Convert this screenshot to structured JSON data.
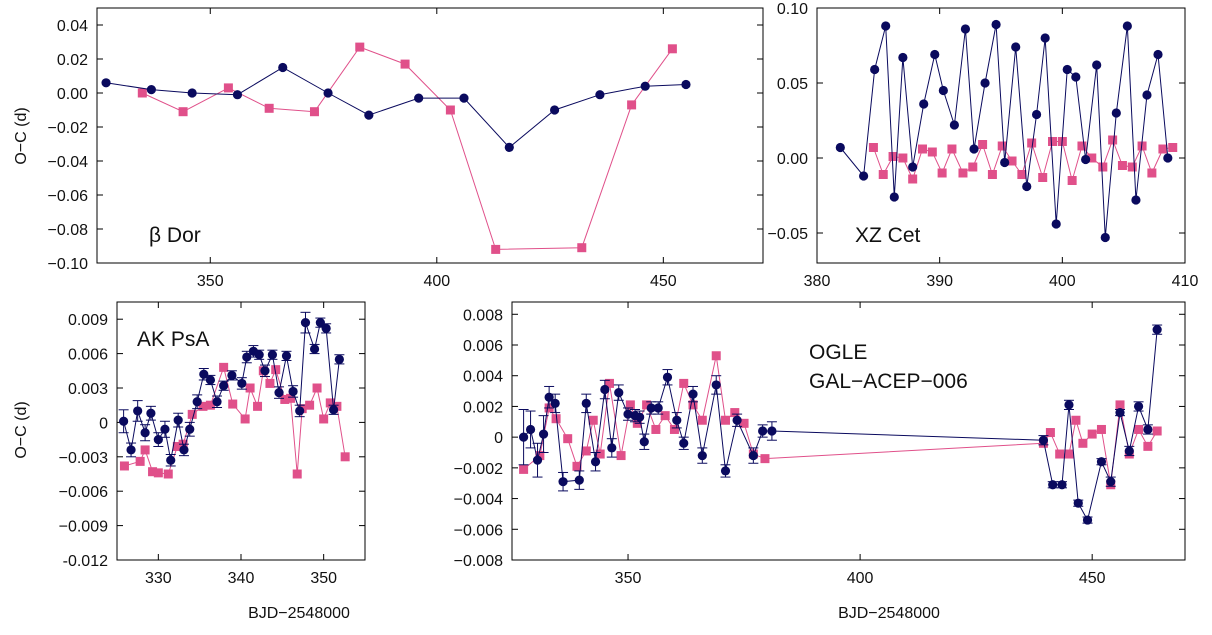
{
  "colors": {
    "series_a": "#0a0a5e",
    "series_b": "#e0508a",
    "frame": "#000000"
  },
  "chart_data": [
    {
      "type": "line",
      "label": "β Dor",
      "ylabel": "O−C (d)",
      "xlabel": "",
      "xlim": [
        325,
        472
      ],
      "ylim": [
        -0.1,
        0.05
      ],
      "xticks": [
        350,
        400,
        450
      ],
      "xtick_labels": [
        "350",
        "400",
        "450"
      ],
      "yticks": [
        -0.1,
        -0.08,
        -0.06,
        -0.04,
        -0.02,
        0.0,
        0.02,
        0.04
      ],
      "ytick_labels": [
        "−0.10",
        "−0.08",
        "−0.06",
        "−0.04",
        "−0.02",
        "0.00",
        "0.02",
        "0.04"
      ],
      "errorbars": false,
      "series": [
        {
          "marker": "circle",
          "x": [
            327,
            337,
            346,
            356,
            366,
            376,
            385,
            396,
            406,
            416,
            426,
            436,
            446,
            455
          ],
          "y": [
            0.006,
            0.002,
            0.0,
            -0.001,
            0.015,
            0.0,
            -0.013,
            -0.003,
            -0.003,
            -0.032,
            -0.01,
            -0.001,
            0.004,
            0.005
          ]
        },
        {
          "marker": "square",
          "x": [
            335,
            344,
            354,
            363,
            373,
            383,
            393,
            403,
            413,
            432,
            443,
            452
          ],
          "y": [
            0.0,
            -0.011,
            0.003,
            -0.009,
            -0.011,
            0.027,
            0.017,
            -0.01,
            -0.092,
            -0.091,
            -0.007,
            0.026
          ]
        }
      ]
    },
    {
      "type": "line",
      "label": "XZ Cet",
      "ylabel": "",
      "xlabel": "",
      "xlim": [
        380,
        410
      ],
      "ylim": [
        -0.07,
        0.1
      ],
      "xticks": [
        380,
        390,
        400,
        410
      ],
      "xtick_labels": [
        "380",
        "390",
        "400",
        "410"
      ],
      "yticks": [
        -0.05,
        0.0,
        0.05,
        0.1
      ],
      "ytick_labels": [
        "−0.05",
        "0.00",
        "0.05",
        "0.10"
      ],
      "errorbars": false,
      "series": [
        {
          "marker": "circle",
          "x": [
            381.9,
            383.8,
            384.7,
            385.6,
            386.3,
            387.0,
            387.8,
            388.7,
            389.6,
            390.3,
            391.2,
            392.1,
            392.8,
            393.7,
            394.6,
            395.3,
            396.2,
            397.1,
            397.9,
            398.6,
            399.5,
            400.4,
            401.1,
            401.9,
            402.8,
            403.5,
            404.4,
            405.3,
            406.0,
            406.9,
            407.8,
            408.6
          ],
          "y": [
            0.007,
            -0.012,
            0.059,
            0.088,
            -0.026,
            0.067,
            -0.006,
            0.036,
            0.069,
            0.045,
            0.022,
            0.086,
            0.006,
            0.05,
            0.089,
            -0.003,
            0.074,
            -0.019,
            0.029,
            0.08,
            -0.044,
            0.059,
            0.054,
            -0.001,
            0.062,
            -0.053,
            0.03,
            0.088,
            -0.028,
            0.042,
            0.069,
            0.0
          ]
        },
        {
          "marker": "square",
          "x": [
            384.6,
            385.4,
            386.2,
            387.0,
            387.8,
            388.6,
            389.4,
            390.2,
            391.0,
            391.9,
            392.7,
            393.5,
            394.3,
            395.1,
            395.9,
            396.7,
            397.5,
            398.4,
            399.2,
            400.0,
            400.8,
            401.6,
            402.4,
            403.3,
            404.1,
            404.9,
            405.7,
            406.5,
            407.3,
            408.2,
            409.0
          ],
          "y": [
            0.007,
            -0.011,
            0.001,
            0.0,
            -0.014,
            0.006,
            0.004,
            -0.01,
            0.006,
            -0.01,
            -0.006,
            0.009,
            -0.011,
            0.008,
            -0.002,
            -0.011,
            0.01,
            -0.013,
            0.011,
            0.011,
            -0.015,
            0.008,
            0.0,
            -0.006,
            0.012,
            -0.005,
            -0.006,
            0.008,
            -0.01,
            0.006,
            0.007
          ]
        }
      ]
    },
    {
      "type": "line",
      "label": "AK PsA",
      "ylabel": "O−C (d)",
      "xlabel": "BJD−2548000",
      "xlim": [
        325,
        355
      ],
      "ylim": [
        -0.012,
        0.0105
      ],
      "xticks": [
        330,
        340,
        350
      ],
      "xtick_labels": [
        "330",
        "340",
        "350"
      ],
      "yticks": [
        -0.012,
        -0.009,
        -0.006,
        -0.003,
        0.0,
        0.003,
        0.006,
        0.009
      ],
      "ytick_labels": [
        "-0.012",
        "−0.009",
        "−0.006",
        "−0.003",
        "0",
        "0.003",
        "0.006",
        "0.009"
      ],
      "errorbars": true,
      "series": [
        {
          "marker": "circle",
          "x": [
            325.8,
            326.7,
            327.5,
            328.4,
            329.1,
            330.0,
            330.8,
            331.5,
            332.4,
            333.1,
            333.8,
            334.7,
            335.5,
            336.3,
            337.1,
            337.9,
            338.9,
            340.1,
            340.7,
            341.5,
            342.2,
            342.9,
            343.8,
            344.6,
            345.5,
            346.3,
            347.1,
            347.8,
            348.9,
            349.6,
            350.3,
            351.2,
            351.9
          ],
          "y": [
            0.0001,
            -0.0024,
            0.001,
            -0.0009,
            0.0008,
            -0.0015,
            -0.0006,
            -0.0033,
            0.0002,
            -0.0024,
            -0.0006,
            0.0018,
            0.0042,
            0.0037,
            0.0018,
            0.0032,
            0.0041,
            0.0034,
            0.0057,
            0.0062,
            0.0059,
            0.0045,
            0.0059,
            0.0026,
            0.0058,
            0.0027,
            0.001,
            0.0087,
            0.0064,
            0.0087,
            0.0082,
            0.0011,
            0.0055
          ],
          "yerr": [
            0.001,
            0.0006,
            0.0009,
            0.0007,
            0.0006,
            0.0006,
            0.0007,
            0.0005,
            0.0006,
            0.0005,
            0.0006,
            0.0006,
            0.0005,
            0.0004,
            0.0005,
            0.0004,
            0.0004,
            0.0005,
            0.0005,
            0.0005,
            0.0004,
            0.0005,
            0.0004,
            0.0005,
            0.0004,
            0.0005,
            0.0005,
            0.0009,
            0.0004,
            0.0004,
            0.0004,
            0.0004,
            0.0004
          ]
        },
        {
          "marker": "square",
          "x": [
            325.9,
            327.8,
            328.4,
            329.3,
            330.0,
            331.2,
            332.3,
            333.0,
            334.1,
            335.4,
            336.3,
            337.9,
            339.0,
            340.5,
            341.1,
            342.0,
            342.7,
            343.5,
            344.2,
            345.3,
            346.0,
            346.8,
            347.4,
            348.3,
            349.2,
            350.0,
            350.8,
            351.6,
            352.6
          ],
          "y": [
            -0.0038,
            -0.0034,
            -0.0024,
            -0.0043,
            -0.0044,
            -0.0045,
            -0.0021,
            -0.0019,
            0.0007,
            0.0014,
            0.0015,
            0.0048,
            0.0016,
            0.0003,
            0.003,
            0.0014,
            0.0045,
            0.0034,
            0.0046,
            0.002,
            0.0021,
            -0.0045,
            0.0012,
            0.0015,
            0.003,
            0.0003,
            0.0017,
            0.0014,
            -0.003
          ]
        }
      ]
    },
    {
      "type": "line",
      "label": "OGLE GAL−ACEP−006",
      "label_lines": [
        "OGLE",
        "GAL−ACEP−006"
      ],
      "ylabel": "",
      "xlabel": "BJD−2548000",
      "xlim": [
        325,
        470
      ],
      "ylim": [
        -0.008,
        0.0088
      ],
      "xticks": [
        350,
        400,
        450
      ],
      "xtick_labels": [
        "350",
        "400",
        "450"
      ],
      "yticks": [
        -0.008,
        -0.006,
        -0.004,
        -0.002,
        0.0,
        0.002,
        0.004,
        0.006,
        0.008
      ],
      "ytick_labels": [
        "−0.008",
        "−0.006",
        "−0.004",
        "−0.002",
        "0",
        "0.002",
        "0.004",
        "0.006",
        "0.008"
      ],
      "errorbars": true,
      "series": [
        {
          "marker": "circle",
          "x": [
            327.5,
            329.0,
            330.5,
            331.8,
            333.0,
            334.3,
            336.0,
            339.5,
            341.0,
            343.0,
            345.0,
            346.5,
            348.0,
            350.0,
            351.5,
            352.5,
            353.5,
            355.0,
            356.5,
            358.5,
            360.5,
            362.0,
            364.0,
            366.0,
            369.0,
            371.0,
            373.5,
            377.0,
            379.0,
            381.0,
            439.5,
            441.5,
            443.5,
            445.0,
            447.0,
            449.0,
            452.0,
            454.0,
            456.0,
            458.0,
            460.0,
            462.0,
            464.0
          ],
          "y": [
            0.0,
            0.0005,
            -0.0015,
            0.0002,
            0.0026,
            0.0022,
            -0.0029,
            -0.0028,
            0.0022,
            -0.0016,
            0.0031,
            -0.0007,
            0.0029,
            0.0015,
            0.0014,
            0.0013,
            -0.0003,
            0.0019,
            0.0019,
            0.0039,
            0.0011,
            -0.0004,
            0.0028,
            -0.0012,
            0.0034,
            -0.0022,
            0.0011,
            -0.0012,
            0.0004,
            0.0004,
            -0.0002,
            -0.0031,
            -0.0031,
            0.0021,
            -0.0043,
            -0.0054,
            -0.0016,
            -0.0029,
            0.0016,
            -0.0009,
            0.002,
            0.0005,
            0.007
          ],
          "yerr": [
            0.0018,
            0.0012,
            0.0011,
            0.0012,
            0.0007,
            0.0006,
            0.0006,
            0.0006,
            0.0006,
            0.0006,
            0.0006,
            0.0006,
            0.0005,
            0.0004,
            0.0004,
            0.0004,
            0.0005,
            0.0004,
            0.0004,
            0.0005,
            0.0005,
            0.0004,
            0.0005,
            0.0005,
            0.0006,
            0.0004,
            0.0004,
            0.0005,
            0.0004,
            0.0006,
            0.0003,
            0.0002,
            0.0002,
            0.0003,
            0.0002,
            0.0002,
            0.0002,
            0.0003,
            0.0002,
            0.0003,
            0.0003,
            0.0003,
            0.0003
          ]
        },
        {
          "marker": "square",
          "x": [
            327.5,
            331.0,
            333.0,
            334.5,
            337.0,
            339.0,
            341.0,
            342.5,
            344.0,
            346.0,
            348.5,
            350.5,
            352.0,
            354.0,
            356.0,
            358.0,
            360.0,
            362.0,
            364.0,
            366.0,
            369.0,
            371.0,
            373.0,
            375.0,
            377.0,
            379.5,
            439.5,
            441.0,
            443.0,
            445.0,
            446.5,
            448.0,
            450.0,
            452.0,
            454.0,
            456.0,
            458.0,
            460.0,
            462.0,
            464.0
          ],
          "y": [
            -0.0021,
            -0.0012,
            0.0019,
            0.0012,
            -0.0001,
            -0.0019,
            -0.0009,
            0.0011,
            -0.0011,
            0.0035,
            -0.0012,
            0.0021,
            0.0009,
            0.0021,
            0.0005,
            0.0014,
            0.0005,
            0.0035,
            0.0021,
            0.0011,
            0.0053,
            0.0011,
            0.0016,
            0.0009,
            -0.0011,
            -0.0014,
            -0.0004,
            0.0003,
            -0.0011,
            -0.0011,
            0.0011,
            -0.0004,
            0.0002,
            0.0005,
            -0.0031,
            0.0021,
            -0.0011,
            0.0005,
            -0.0006,
            0.0004
          ]
        }
      ]
    }
  ]
}
